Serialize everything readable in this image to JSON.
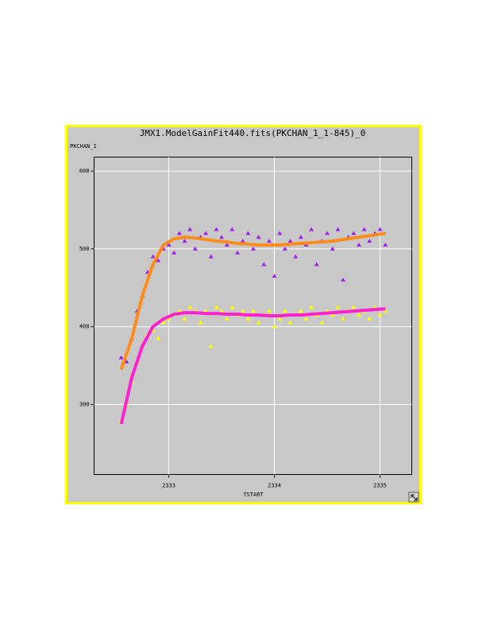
{
  "chart_data": {
    "type": "scatter",
    "title": "JMX1.ModelGainFit440.fits(PKCHAN_1_1-845)_0",
    "y_label": "PKCHAN_1",
    "x_label": "TSTART",
    "xlim": [
      2332.293,
      2335.3
    ],
    "ylim": [
      210,
      618
    ],
    "xticks": [
      2333,
      2334,
      2335
    ],
    "yticks": [
      300,
      400,
      500,
      600
    ],
    "grid": true,
    "series": [
      {
        "mode": "markers",
        "color": "#a020f0",
        "x": [
          2332.55,
          2332.6,
          2332.65,
          2332.7,
          2332.75,
          2332.8,
          2332.85,
          2332.9,
          2332.95,
          2333,
          2333.05,
          2333.1,
          2333.15,
          2333.2,
          2333.25,
          2333.3,
          2333.35,
          2333.4,
          2333.45,
          2333.5,
          2333.55,
          2333.6,
          2333.65,
          2333.7,
          2333.75,
          2333.8,
          2333.85,
          2333.9,
          2333.95,
          2334,
          2334.05,
          2334.1,
          2334.15,
          2334.2,
          2334.25,
          2334.3,
          2334.35,
          2334.4,
          2334.45,
          2334.5,
          2334.55,
          2334.6,
          2334.65,
          2334.7,
          2334.75,
          2334.8,
          2334.85,
          2334.9,
          2334.95,
          2335,
          2335.05
        ],
        "values": [
          360,
          355,
          385,
          420,
          440,
          470,
          490,
          485,
          500,
          505,
          495,
          520,
          510,
          525,
          500,
          515,
          520,
          490,
          525,
          515,
          505,
          525,
          495,
          510,
          520,
          500,
          515,
          480,
          510,
          465,
          520,
          500,
          510,
          490,
          515,
          505,
          525,
          480,
          510,
          520,
          500,
          525,
          460,
          515,
          520,
          505,
          525,
          510,
          520,
          525,
          505
        ]
      },
      {
        "mode": "markers",
        "color": "#ffff00",
        "x": [
          2332.55,
          2332.6,
          2332.65,
          2332.7,
          2332.75,
          2332.8,
          2332.85,
          2332.9,
          2332.95,
          2333,
          2333.05,
          2333.1,
          2333.15,
          2333.2,
          2333.25,
          2333.3,
          2333.35,
          2333.4,
          2333.45,
          2333.5,
          2333.55,
          2333.6,
          2333.65,
          2333.7,
          2333.75,
          2333.8,
          2333.85,
          2333.9,
          2333.95,
          2334,
          2334.05,
          2334.1,
          2334.15,
          2334.2,
          2334.25,
          2334.3,
          2334.35,
          2334.4,
          2334.45,
          2334.5,
          2334.55,
          2334.6,
          2334.65,
          2334.7,
          2334.75,
          2334.8,
          2334.85,
          2334.9,
          2334.95,
          2335,
          2335.05
        ],
        "values": [
          280,
          300,
          330,
          355,
          375,
          390,
          395,
          385,
          405,
          410,
          415,
          420,
          410,
          425,
          420,
          405,
          420,
          375,
          425,
          420,
          410,
          425,
          415,
          420,
          410,
          420,
          405,
          415,
          420,
          400,
          410,
          420,
          405,
          415,
          420,
          410,
          425,
          415,
          405,
          420,
          415,
          425,
          410,
          420,
          425,
          415,
          420,
          410,
          425,
          415,
          420
        ]
      },
      {
        "mode": "line",
        "color": "#ff8c1a",
        "x": [
          2332.55,
          2332.65,
          2332.75,
          2332.85,
          2332.95,
          2333.05,
          2333.15,
          2333.25,
          2333.35,
          2333.45,
          2333.55,
          2333.65,
          2333.75,
          2333.85,
          2333.95,
          2334.05,
          2334.15,
          2334.25,
          2334.35,
          2334.45,
          2334.55,
          2334.65,
          2334.75,
          2334.85,
          2334.95,
          2335.05
        ],
        "values": [
          345,
          385,
          440,
          480,
          505,
          513,
          515,
          514,
          512,
          510,
          509,
          507,
          506,
          505,
          505,
          505,
          506,
          507,
          508,
          509,
          510,
          512,
          514,
          516,
          518,
          520
        ]
      },
      {
        "mode": "line",
        "color": "#ff20d0",
        "x": [
          2332.55,
          2332.65,
          2332.75,
          2332.85,
          2332.95,
          2333.05,
          2333.15,
          2333.25,
          2333.35,
          2333.45,
          2333.55,
          2333.65,
          2333.75,
          2333.85,
          2333.95,
          2334.05,
          2334.15,
          2334.25,
          2334.35,
          2334.45,
          2334.55,
          2334.65,
          2334.75,
          2334.85,
          2334.95,
          2335.05
        ],
        "values": [
          275,
          335,
          375,
          400,
          410,
          416,
          418,
          418,
          417,
          417,
          416,
          416,
          415,
          415,
          414,
          414,
          415,
          415,
          416,
          417,
          418,
          419,
          420,
          421,
          422,
          423
        ]
      }
    ]
  }
}
